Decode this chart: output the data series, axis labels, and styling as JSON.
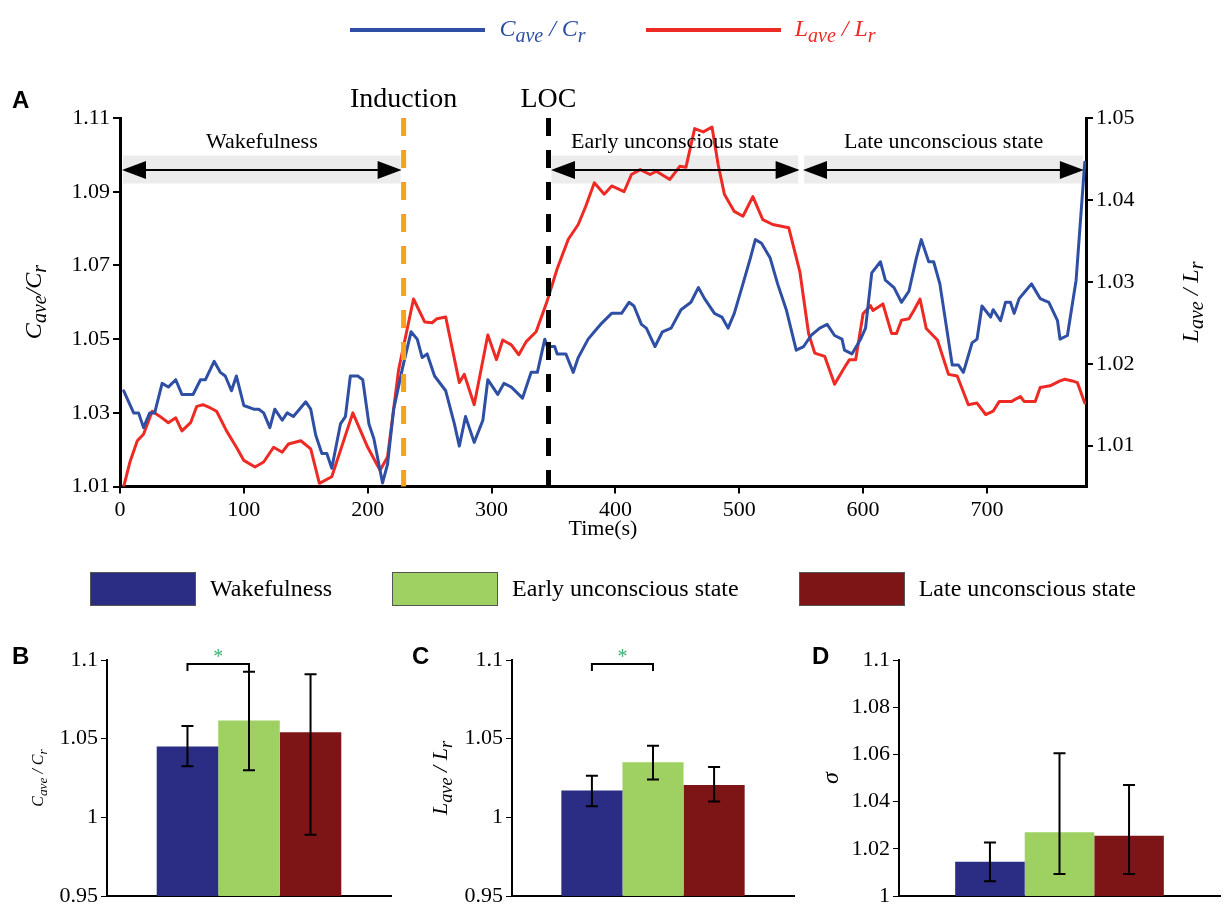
{
  "chart_data": [
    {
      "type": "line",
      "title": "A",
      "xlabel": "Time(s)",
      "ylabel": "C$_{ave}$/C$_{r}$",
      "y2label": "L$_{ave}$ / L$_{r}$",
      "legend": "top",
      "xlim": [
        0,
        780
      ],
      "xticks": [
        0,
        100,
        200,
        300,
        400,
        500,
        600,
        700
      ],
      "ylim": [
        1.01,
        1.11
      ],
      "yticks": [
        1.01,
        1.03,
        1.05,
        1.07,
        1.09,
        1.11
      ],
      "y2lim": [
        1.005,
        1.05
      ],
      "y2ticks": [
        1.01,
        1.02,
        1.03,
        1.04,
        1.05
      ],
      "series": [
        {
          "name": "C$_{ave}$ / C$_{r}$",
          "color": "#2e4fa3",
          "x": [
            3,
            11,
            15,
            19,
            24,
            28,
            34,
            39,
            45,
            50,
            59,
            65,
            69,
            76,
            81,
            85,
            90,
            94,
            100,
            108,
            112,
            116,
            121,
            125,
            131,
            135,
            140,
            150,
            154,
            158,
            163,
            167,
            171,
            178,
            182,
            186,
            192,
            196,
            201,
            205,
            212,
            216,
            221,
            228,
            235,
            240,
            244,
            248,
            254,
            263,
            270,
            274,
            279,
            286,
            293,
            297,
            305,
            310,
            316,
            325,
            332,
            337,
            343,
            345,
            351,
            353,
            360,
            366,
            370,
            378,
            383,
            388,
            397,
            405,
            411,
            415,
            421,
            425,
            432,
            438,
            445,
            453,
            461,
            467,
            472,
            480,
            486,
            491,
            496,
            503,
            509,
            513,
            518,
            525,
            531,
            538,
            546,
            552,
            558,
            565,
            571,
            577,
            583,
            585,
            591,
            598,
            602,
            607,
            614,
            618,
            625,
            631,
            637,
            643,
            647,
            653,
            657,
            662,
            672,
            677,
            681,
            688,
            692,
            696,
            703,
            705,
            711,
            715,
            719,
            722,
            726,
            731,
            736,
            743,
            750,
            757,
            759,
            765,
            772,
            779
          ],
          "values": [
            1.036,
            1.03,
            1.03,
            1.026,
            1.03,
            1.03,
            1.038,
            1.037,
            1.039,
            1.035,
            1.035,
            1.039,
            1.039,
            1.044,
            1.041,
            1.04,
            1.036,
            1.04,
            1.032,
            1.031,
            1.031,
            1.03,
            1.026,
            1.031,
            1.028,
            1.03,
            1.029,
            1.033,
            1.031,
            1.024,
            1.019,
            1.019,
            1.015,
            1.027,
            1.029,
            1.04,
            1.04,
            1.039,
            1.027,
            1.023,
            1.011,
            1.016,
            1.031,
            1.042,
            1.052,
            1.05,
            1.045,
            1.046,
            1.04,
            1.036,
            1.027,
            1.021,
            1.029,
            1.022,
            1.028,
            1.039,
            1.035,
            1.038,
            1.037,
            1.034,
            1.041,
            1.041,
            1.05,
            1.048,
            1.048,
            1.046,
            1.046,
            1.041,
            1.045,
            1.05,
            1.052,
            1.054,
            1.057,
            1.057,
            1.06,
            1.059,
            1.054,
            1.053,
            1.048,
            1.052,
            1.053,
            1.058,
            1.06,
            1.064,
            1.061,
            1.057,
            1.056,
            1.053,
            1.057,
            1.065,
            1.072,
            1.077,
            1.076,
            1.072,
            1.065,
            1.058,
            1.047,
            1.048,
            1.051,
            1.053,
            1.054,
            1.051,
            1.05,
            1.047,
            1.046,
            1.05,
            1.053,
            1.068,
            1.071,
            1.066,
            1.064,
            1.06,
            1.063,
            1.072,
            1.077,
            1.071,
            1.071,
            1.065,
            1.043,
            1.043,
            1.041,
            1.049,
            1.05,
            1.059,
            1.056,
            1.058,
            1.055,
            1.06,
            1.06,
            1.057,
            1.061,
            1.063,
            1.065,
            1.061,
            1.06,
            1.055,
            1.05,
            1.051,
            1.066,
            1.098
          ]
        },
        {
          "name": "L$_{ave}$ / L$_{r}$",
          "color": "#ee2a24",
          "axis": "y2",
          "x": [
            3,
            8,
            14,
            19,
            26,
            32,
            39,
            45,
            50,
            57,
            62,
            67,
            73,
            78,
            86,
            94,
            100,
            109,
            116,
            124,
            131,
            136,
            146,
            154,
            161,
            171,
            188,
            200,
            210,
            216,
            225,
            237,
            246,
            252,
            256,
            263,
            274,
            278,
            286,
            297,
            304,
            309,
            316,
            322,
            328,
            336,
            345,
            353,
            362,
            370,
            376,
            383,
            391,
            397,
            407,
            413,
            420,
            428,
            433,
            444,
            452,
            457,
            464,
            471,
            478,
            483,
            488,
            496,
            503,
            511,
            519,
            527,
            540,
            549,
            556,
            561,
            569,
            577,
            584,
            589,
            594,
            600,
            606,
            608,
            616,
            623,
            627,
            631,
            637,
            641,
            646,
            651,
            660,
            669,
            676,
            685,
            692,
            699,
            705,
            710,
            720,
            727,
            730,
            739,
            743,
            751,
            759,
            763,
            769,
            773,
            779
          ],
          "values": [
            1.005,
            1.008,
            1.0106,
            1.0114,
            1.0142,
            1.0136,
            1.0128,
            1.0134,
            1.0118,
            1.0128,
            1.0148,
            1.015,
            1.0146,
            1.0142,
            1.0118,
            1.0098,
            1.0082,
            1.0074,
            1.008,
            1.0098,
            1.0092,
            1.0102,
            1.0106,
            1.0096,
            1.0054,
            1.0062,
            1.014,
            1.0098,
            1.007,
            1.0086,
            1.0193,
            1.0279,
            1.0251,
            1.025,
            1.0255,
            1.0257,
            1.0177,
            1.0187,
            1.015,
            1.0235,
            1.0205,
            1.0229,
            1.0223,
            1.0211,
            1.0227,
            1.0239,
            1.0277,
            1.0316,
            1.0352,
            1.037,
            1.0392,
            1.0421,
            1.0407,
            1.0417,
            1.041,
            1.0431,
            1.0437,
            1.0431,
            1.0435,
            1.0425,
            1.0441,
            1.044,
            1.0487,
            1.0483,
            1.0489,
            1.0443,
            1.0407,
            1.0386,
            1.038,
            1.0404,
            1.0376,
            1.037,
            1.0366,
            1.0312,
            1.0237,
            1.0213,
            1.0209,
            1.0175,
            1.0193,
            1.0205,
            1.0205,
            1.0261,
            1.0271,
            1.0265,
            1.0273,
            1.0237,
            1.0237,
            1.0253,
            1.0255,
            1.0265,
            1.0279,
            1.0243,
            1.0229,
            1.0187,
            1.0185,
            1.015,
            1.0152,
            1.0138,
            1.0142,
            1.0154,
            1.0154,
            1.016,
            1.0154,
            1.0154,
            1.0171,
            1.0173,
            1.0179,
            1.0181,
            1.0179,
            1.0177,
            1.0152
          ]
        }
      ],
      "ref_lines": [
        {
          "axis": "x",
          "value": 229,
          "label": "Induction",
          "color": "#f7a21b",
          "line_style": "dashed"
        },
        {
          "axis": "x",
          "value": 346,
          "label": "LOC",
          "color": "#000000",
          "line_style": "dashed"
        }
      ],
      "bands": [
        {
          "axis": "x",
          "from": 0,
          "to": 229,
          "label": "Wakefulness",
          "color": "#ececec"
        },
        {
          "axis": "x",
          "from": 346,
          "to": 550,
          "label": "Early unconscious state",
          "color": "#ececec"
        },
        {
          "axis": "x",
          "from": 550,
          "to": 780,
          "label": "Late unconscious state",
          "color": "#ececec"
        }
      ]
    },
    {
      "type": "bar",
      "title": "B",
      "ylabel": "C$_{ave}$ / C$_{r}$",
      "legend": "top",
      "tick_labels": "y",
      "categories": [
        null
      ],
      "ylim": [
        0.95,
        1.1
      ],
      "yticks": [
        0.95,
        1,
        1.05,
        1.1
      ],
      "annotations": [
        "*"
      ],
      "series": [
        {
          "name": "Wakefulness",
          "color": "#2b2d84",
          "values": [
            1.045
          ],
          "errors": [
            [
              1.0325,
              1.058
            ]
          ]
        },
        {
          "name": "Early unconscious state",
          "color": "#9fd162",
          "values": [
            1.0615
          ],
          "errors": [
            [
              1.03,
              1.0925
            ]
          ]
        },
        {
          "name": "Late unconscious state",
          "color": "#7d1416",
          "values": [
            1.054
          ],
          "errors": [
            [
              0.989,
              1.091
            ]
          ]
        }
      ]
    },
    {
      "type": "bar",
      "title": "C",
      "ylabel": "L$_{ave}$ / L$_{r}$",
      "tick_labels": "y",
      "categories": [
        null
      ],
      "ylim": [
        0.95,
        1.1
      ],
      "yticks": [
        0.95,
        1,
        1.05,
        1.1
      ],
      "annotations": [
        "*"
      ],
      "series": [
        {
          "color": "#2b2d84",
          "values": [
            1.017
          ],
          "errors": [
            [
              1.007,
              1.0265
            ]
          ]
        },
        {
          "color": "#9fd162",
          "values": [
            1.035
          ],
          "errors": [
            [
              1.024,
              1.0455
            ]
          ]
        },
        {
          "color": "#7d1416",
          "values": [
            1.0205
          ],
          "errors": [
            [
              1.01,
              1.032
            ]
          ]
        }
      ]
    },
    {
      "type": "bar",
      "title": "D",
      "ylabel": "σ",
      "tick_labels": "y",
      "categories": [
        null
      ],
      "ylim": [
        1,
        1.1
      ],
      "yticks": [
        1,
        1.02,
        1.04,
        1.06,
        1.08,
        1.1
      ],
      "series": [
        {
          "color": "#2b2d84",
          "values": [
            1.0145
          ],
          "errors": [
            [
              1.0063,
              1.0227
            ]
          ]
        },
        {
          "color": "#9fd162",
          "values": [
            1.027
          ],
          "errors": [
            [
              1.0093,
              1.0605
            ]
          ]
        },
        {
          "color": "#7d1416",
          "values": [
            1.0255
          ],
          "errors": [
            [
              1.0093,
              1.047
            ]
          ]
        }
      ]
    }
  ]
}
